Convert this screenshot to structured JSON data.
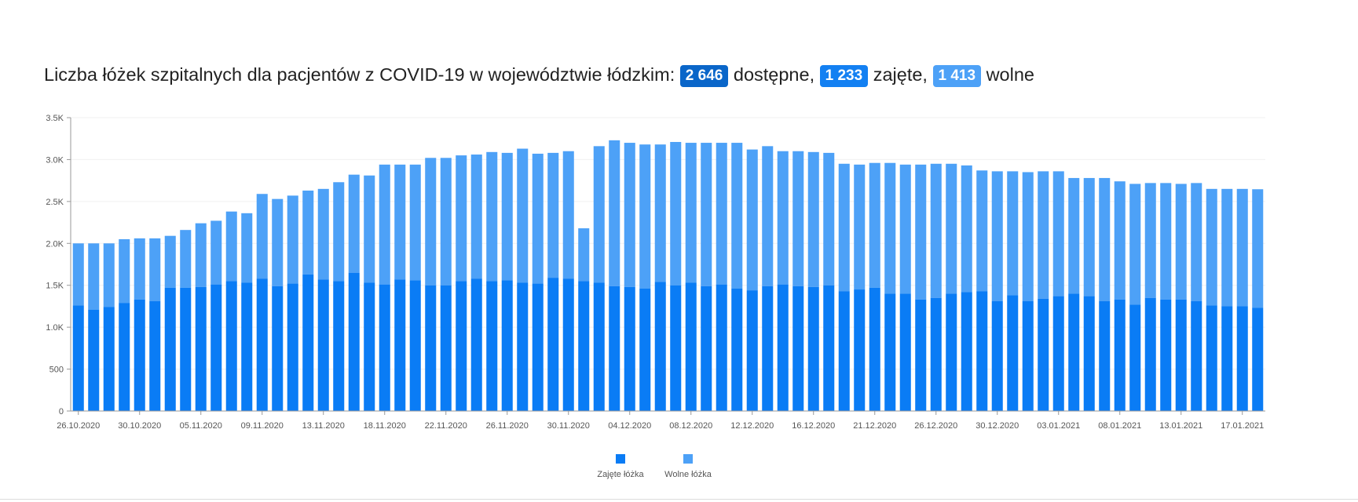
{
  "title": {
    "text_before": "Liczba łóżek szpitalnych dla pacjentów z COVID-19 w województwie łódzkim:",
    "badge_total": "2 646",
    "word_total": "dostępne,",
    "badge_occupied": "1 233",
    "word_occupied": "zajęte,",
    "badge_free": "1 413",
    "word_free": "wolne"
  },
  "colors": {
    "occupied": "#0a7cf5",
    "free": "#4da1f7",
    "badge_total": "#0a66c9",
    "badge_occupied": "#1380f2",
    "badge_free": "#4da1f7"
  },
  "chart_data": {
    "type": "bar",
    "stacked": true,
    "ylim": [
      0,
      3500
    ],
    "y_ticks": [
      "0",
      "500",
      "1.0K",
      "1.5K",
      "2.0K",
      "2.5K",
      "3.0K",
      "3.5K"
    ],
    "y_tick_values": [
      0,
      500,
      1000,
      1500,
      2000,
      2500,
      3000,
      3500
    ],
    "x_tick_labels": [
      "26.10.2020",
      "30.10.2020",
      "05.11.2020",
      "09.11.2020",
      "13.11.2020",
      "18.11.2020",
      "22.11.2020",
      "26.11.2020",
      "30.11.2020",
      "04.12.2020",
      "08.12.2020",
      "12.12.2020",
      "16.12.2020",
      "21.12.2020",
      "26.12.2020",
      "30.12.2020",
      "03.01.2021",
      "08.01.2021",
      "13.01.2021",
      "17.01.2021"
    ],
    "x_tick_index": [
      0,
      4,
      8,
      12,
      16,
      20,
      24,
      28,
      32,
      36,
      40,
      44,
      48,
      52,
      56,
      60,
      64,
      68,
      72,
      76
    ],
    "legend_position": "bottom-center",
    "grid": "horizontal",
    "series": [
      {
        "name": "Zajęte łóżka",
        "values": [
          1260,
          1210,
          1240,
          1290,
          1330,
          1310,
          1470,
          1470,
          1480,
          1510,
          1550,
          1530,
          1580,
          1490,
          1520,
          1630,
          1570,
          1550,
          1650,
          1530,
          1510,
          1570,
          1560,
          1500,
          1500,
          1550,
          1580,
          1550,
          1560,
          1530,
          1520,
          1590,
          1580,
          1550,
          1530,
          1490,
          1480,
          1460,
          1540,
          1500,
          1530,
          1490,
          1510,
          1460,
          1440,
          1490,
          1510,
          1490,
          1480,
          1500,
          1430,
          1450,
          1470,
          1400,
          1400,
          1330,
          1350,
          1400,
          1420,
          1430,
          1310,
          1380,
          1310,
          1340,
          1370,
          1400,
          1370,
          1310,
          1330,
          1270,
          1350,
          1330,
          1330,
          1310,
          1260,
          1250,
          1250,
          1233
        ]
      },
      {
        "name": "Wolne łóżka",
        "values": [
          740,
          790,
          760,
          760,
          730,
          750,
          620,
          690,
          760,
          760,
          830,
          830,
          1010,
          1040,
          1050,
          1000,
          1080,
          1180,
          1170,
          1280,
          1430,
          1370,
          1380,
          1520,
          1520,
          1500,
          1480,
          1540,
          1520,
          1600,
          1550,
          1490,
          1520,
          630,
          1630,
          1740,
          1720,
          1720,
          1640,
          1710,
          1670,
          1710,
          1690,
          1740,
          1680,
          1670,
          1590,
          1610,
          1610,
          1580,
          1520,
          1490,
          1490,
          1560,
          1540,
          1610,
          1600,
          1550,
          1510,
          1440,
          1550,
          1480,
          1540,
          1520,
          1490,
          1380,
          1410,
          1470,
          1410,
          1440,
          1370,
          1390,
          1380,
          1410,
          1390,
          1400,
          1400,
          1413
        ]
      }
    ]
  }
}
